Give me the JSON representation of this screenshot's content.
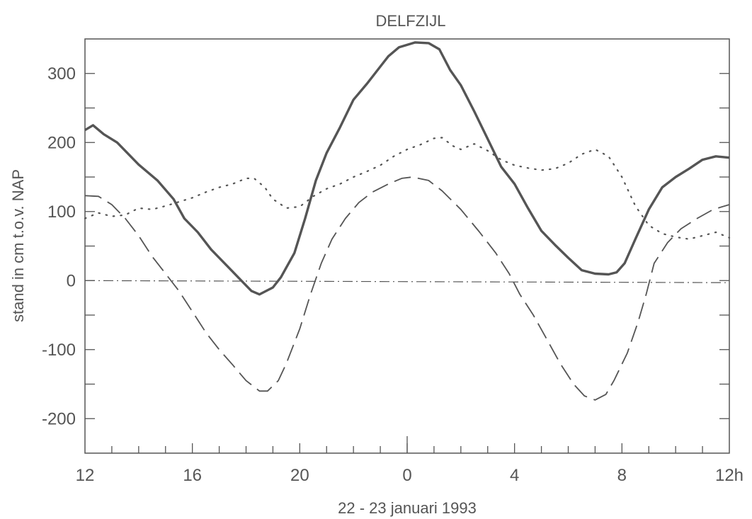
{
  "chart_data": {
    "type": "line",
    "title": "DELFZIJL",
    "xlabel": "22 - 23 januari 1993",
    "ylabel": "stand in cm t.o.v. NAP",
    "xlim": [
      0,
      24
    ],
    "ylim": [
      -250,
      350
    ],
    "x_ticks": [
      {
        "x": 0,
        "label": "12"
      },
      {
        "x": 4,
        "label": "16"
      },
      {
        "x": 8,
        "label": "20"
      },
      {
        "x": 12,
        "label": "0"
      },
      {
        "x": 16,
        "label": "4"
      },
      {
        "x": 20,
        "label": "8"
      },
      {
        "x": 24,
        "label": "12h"
      }
    ],
    "y_ticks": [
      {
        "y": 300,
        "label": "300"
      },
      {
        "y": 200,
        "label": "200"
      },
      {
        "y": 100,
        "label": "100"
      },
      {
        "y": 0,
        "label": "0"
      },
      {
        "y": -100,
        "label": "-100"
      },
      {
        "y": -200,
        "label": "-200"
      }
    ],
    "grid": false,
    "series": [
      {
        "style": "solid",
        "color": "#555555",
        "points": [
          [
            0,
            218
          ],
          [
            0.3,
            225
          ],
          [
            0.7,
            212
          ],
          [
            1.2,
            200
          ],
          [
            2,
            168
          ],
          [
            2.7,
            145
          ],
          [
            3.3,
            118
          ],
          [
            3.7,
            90
          ],
          [
            4.2,
            70
          ],
          [
            4.7,
            45
          ],
          [
            5.2,
            25
          ],
          [
            5.7,
            5
          ],
          [
            6.2,
            -15
          ],
          [
            6.5,
            -20
          ],
          [
            7,
            -10
          ],
          [
            7.3,
            5
          ],
          [
            7.8,
            40
          ],
          [
            8.2,
            90
          ],
          [
            8.6,
            145
          ],
          [
            9,
            185
          ],
          [
            9.5,
            222
          ],
          [
            10,
            262
          ],
          [
            10.5,
            285
          ],
          [
            11,
            310
          ],
          [
            11.3,
            325
          ],
          [
            11.7,
            338
          ],
          [
            12.3,
            345
          ],
          [
            12.8,
            344
          ],
          [
            13.2,
            335
          ],
          [
            13.6,
            305
          ],
          [
            14,
            283
          ],
          [
            14.5,
            245
          ],
          [
            15,
            205
          ],
          [
            15.5,
            165
          ],
          [
            16,
            140
          ],
          [
            16.5,
            105
          ],
          [
            17,
            72
          ],
          [
            17.5,
            52
          ],
          [
            18,
            33
          ],
          [
            18.5,
            15
          ],
          [
            19,
            10
          ],
          [
            19.5,
            9
          ],
          [
            19.8,
            12
          ],
          [
            20.1,
            25
          ],
          [
            20.5,
            60
          ],
          [
            21,
            103
          ],
          [
            21.5,
            135
          ],
          [
            22,
            150
          ],
          [
            22.5,
            162
          ],
          [
            23,
            175
          ],
          [
            23.5,
            180
          ],
          [
            24,
            178
          ]
        ]
      },
      {
        "style": "dashed",
        "color": "#555555",
        "points": [
          [
            0,
            123
          ],
          [
            0.5,
            122
          ],
          [
            1,
            110
          ],
          [
            1.5,
            90
          ],
          [
            2,
            65
          ],
          [
            2.5,
            35
          ],
          [
            3,
            10
          ],
          [
            3.5,
            -15
          ],
          [
            4,
            -45
          ],
          [
            4.5,
            -75
          ],
          [
            5,
            -100
          ],
          [
            5.5,
            -122
          ],
          [
            6,
            -145
          ],
          [
            6.5,
            -160
          ],
          [
            6.8,
            -160
          ],
          [
            7.2,
            -145
          ],
          [
            7.5,
            -120
          ],
          [
            8,
            -70
          ],
          [
            8.4,
            -20
          ],
          [
            8.8,
            25
          ],
          [
            9.2,
            60
          ],
          [
            9.7,
            90
          ],
          [
            10.2,
            113
          ],
          [
            10.7,
            128
          ],
          [
            11.3,
            140
          ],
          [
            11.8,
            148
          ],
          [
            12.2,
            150
          ],
          [
            12.8,
            145
          ],
          [
            13.3,
            130
          ],
          [
            14,
            103
          ],
          [
            14.7,
            70
          ],
          [
            15.3,
            40
          ],
          [
            15.8,
            10
          ],
          [
            16.2,
            -20
          ],
          [
            16.7,
            -50
          ],
          [
            17.2,
            -85
          ],
          [
            17.7,
            -120
          ],
          [
            18.2,
            -150
          ],
          [
            18.6,
            -167
          ],
          [
            19,
            -173
          ],
          [
            19.4,
            -165
          ],
          [
            19.7,
            -145
          ],
          [
            20.2,
            -105
          ],
          [
            20.6,
            -60
          ],
          [
            20.9,
            -20
          ],
          [
            21.2,
            25
          ],
          [
            21.7,
            55
          ],
          [
            22.2,
            75
          ],
          [
            22.8,
            90
          ],
          [
            23.4,
            103
          ],
          [
            24,
            110
          ]
        ]
      },
      {
        "style": "dotted",
        "color": "#555555",
        "points": [
          [
            0,
            90
          ],
          [
            0.5,
            98
          ],
          [
            1,
            93
          ],
          [
            1.5,
            95
          ],
          [
            2,
            105
          ],
          [
            2.5,
            103
          ],
          [
            3,
            108
          ],
          [
            3.5,
            114
          ],
          [
            4,
            120
          ],
          [
            4.5,
            128
          ],
          [
            5,
            135
          ],
          [
            5.5,
            140
          ],
          [
            6,
            148
          ],
          [
            6.3,
            148
          ],
          [
            6.7,
            135
          ],
          [
            7,
            118
          ],
          [
            7.5,
            105
          ],
          [
            8,
            107
          ],
          [
            8.5,
            122
          ],
          [
            9,
            133
          ],
          [
            9.5,
            140
          ],
          [
            10,
            150
          ],
          [
            10.5,
            158
          ],
          [
            11,
            167
          ],
          [
            11.5,
            180
          ],
          [
            12,
            190
          ],
          [
            12.5,
            197
          ],
          [
            13,
            206
          ],
          [
            13.3,
            207
          ],
          [
            13.7,
            195
          ],
          [
            14,
            190
          ],
          [
            14.5,
            198
          ],
          [
            15,
            188
          ],
          [
            15.5,
            175
          ],
          [
            16,
            167
          ],
          [
            16.5,
            163
          ],
          [
            17,
            160
          ],
          [
            17.5,
            162
          ],
          [
            18,
            170
          ],
          [
            18.5,
            183
          ],
          [
            19,
            190
          ],
          [
            19.5,
            180
          ],
          [
            20,
            150
          ],
          [
            20.5,
            108
          ],
          [
            21,
            80
          ],
          [
            21.5,
            68
          ],
          [
            22,
            63
          ],
          [
            22.5,
            60
          ],
          [
            23,
            65
          ],
          [
            23.5,
            70
          ],
          [
            24,
            62
          ]
        ]
      },
      {
        "style": "dashdot",
        "color": "#555555",
        "points": [
          [
            0,
            0
          ],
          [
            24,
            -3
          ]
        ]
      }
    ]
  }
}
